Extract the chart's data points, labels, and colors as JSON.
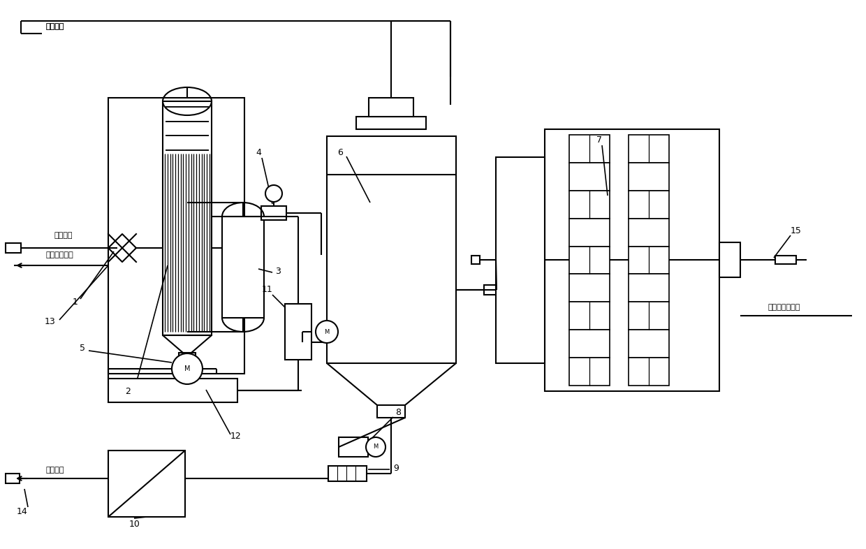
{
  "bg_color": "#ffffff",
  "lc": "#000000",
  "lw": 1.5,
  "fs": 8,
  "fuel_label": "燃气管线",
  "inlet_label": "废液进口",
  "water_label": "去水处理系统",
  "salt_label": "去盐料仓",
  "exhaust_label": "去烟气净化系统"
}
